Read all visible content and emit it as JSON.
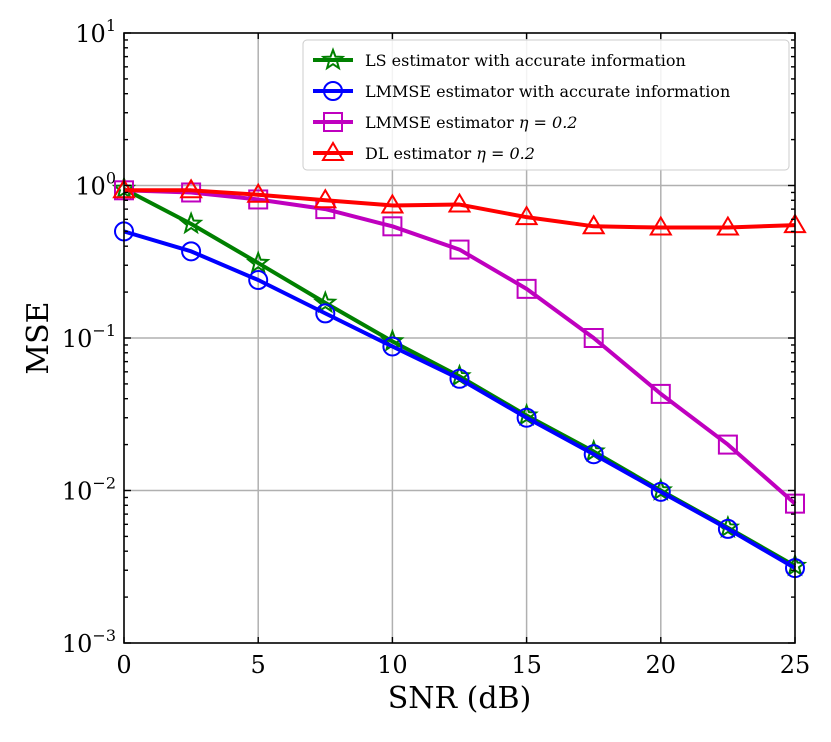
{
  "chart_data": {
    "type": "line",
    "title": "",
    "xlabel": "SNR (dB)",
    "ylabel": "MSE",
    "y_scale": "log",
    "xlim": [
      0,
      25
    ],
    "ylim": [
      0.001,
      10
    ],
    "grid": true,
    "legend_position": "top-right",
    "x_ticks": [
      0,
      5,
      10,
      15,
      20,
      25
    ],
    "x_tick_labels": [
      "0",
      "5",
      "10",
      "15",
      "20",
      "25"
    ],
    "y_ticks": [
      0.001,
      0.01,
      0.1,
      1,
      10
    ],
    "y_tick_labels": [
      {
        "base": "10",
        "exp": "−3"
      },
      {
        "base": "10",
        "exp": "−2"
      },
      {
        "base": "10",
        "exp": "−1"
      },
      {
        "base": "10",
        "exp": "0"
      },
      {
        "base": "10",
        "exp": "1"
      }
    ],
    "x": [
      0,
      2.5,
      5,
      7.5,
      10,
      12.5,
      15,
      17.5,
      20,
      22.5,
      25
    ],
    "series": [
      {
        "name": "LS estimator with accurate information",
        "legend_parts": {
          "text": "LS estimator with accurate information",
          "math": ""
        },
        "color": "#008000",
        "marker": "star",
        "values": [
          0.95,
          0.56,
          0.31,
          0.17,
          0.095,
          0.056,
          0.031,
          0.018,
          0.01,
          0.0057,
          0.0032
        ]
      },
      {
        "name": "LMMSE estimator with accurate information",
        "legend_parts": {
          "text": "LMMSE estimator with accurate information",
          "math": ""
        },
        "color": "#0000ff",
        "marker": "circle",
        "values": [
          0.5,
          0.37,
          0.24,
          0.145,
          0.088,
          0.054,
          0.03,
          0.0173,
          0.0098,
          0.0056,
          0.0031
        ]
      },
      {
        "name": "LMMSE estimator η = 0.2",
        "legend_parts": {
          "text": "LMMSE estimator ",
          "math": "η = 0.2"
        },
        "color": "#bf00bf",
        "marker": "square",
        "values": [
          0.93,
          0.9,
          0.81,
          0.7,
          0.54,
          0.38,
          0.21,
          0.1,
          0.043,
          0.02,
          0.0082
        ]
      },
      {
        "name": "DL estimator η = 0.2",
        "legend_parts": {
          "text": "DL estimator ",
          "math": "η = 0.2"
        },
        "color": "#ff0000",
        "marker": "triangle",
        "values": [
          0.93,
          0.93,
          0.87,
          0.8,
          0.74,
          0.75,
          0.62,
          0.54,
          0.53,
          0.53,
          0.55
        ]
      }
    ]
  }
}
